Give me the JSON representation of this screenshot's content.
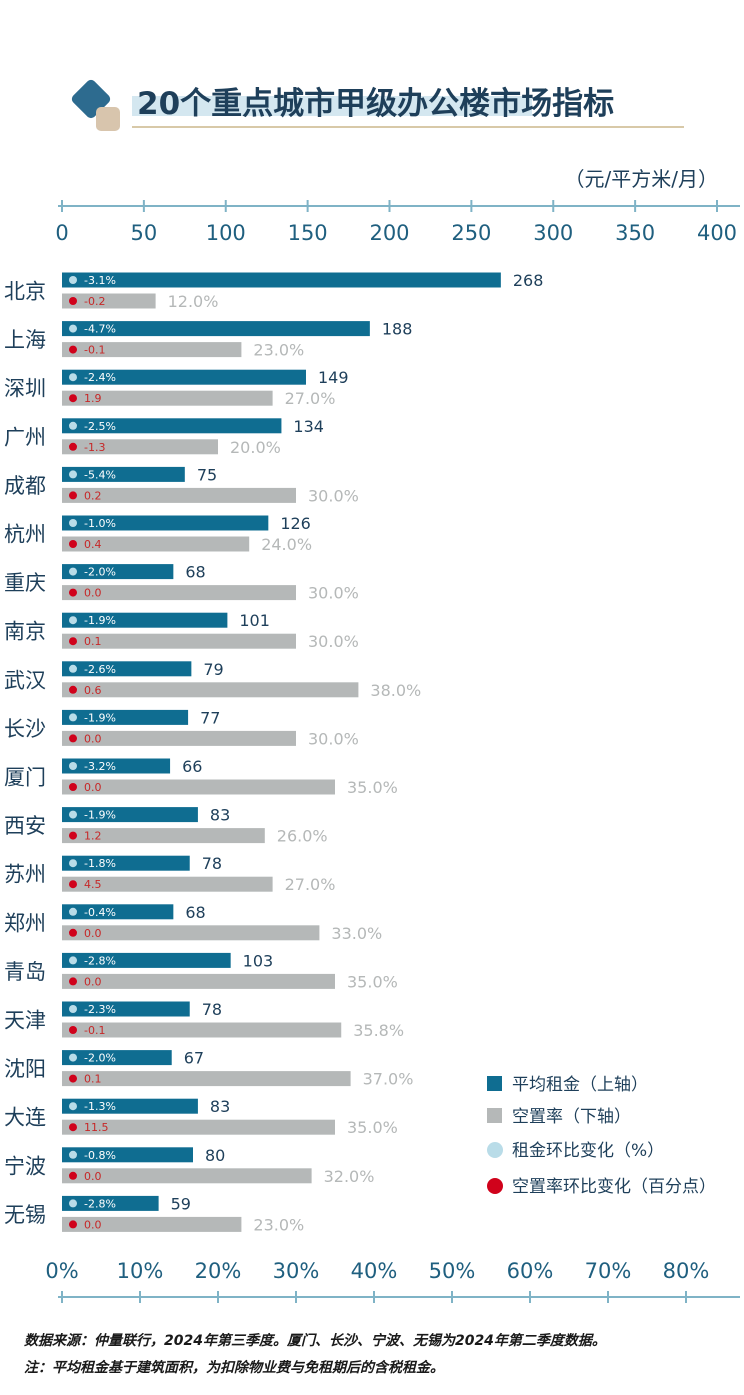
{
  "header": {
    "title": "20个重点城市甲级办公楼市场指标",
    "unit": "（元/平方米/月）"
  },
  "colors": {
    "rent_bar": "#0f6d91",
    "vacancy_bar": "#b5b8b8",
    "rent_change_dot": "#b9dce8",
    "vacancy_change_dot": "#d0021b",
    "axis": "#7fb3c6",
    "text": "#1e3f5a"
  },
  "chart_data": {
    "type": "bar",
    "orientation": "horizontal",
    "title": "20个重点城市甲级办公楼市场指标",
    "top_axis": {
      "label": "（元/平方米/月）",
      "range": [
        0,
        400
      ],
      "ticks": [
        "0",
        "50",
        "100",
        "150",
        "200",
        "250",
        "300",
        "350",
        "400"
      ]
    },
    "bottom_axis": {
      "range": [
        0,
        80
      ],
      "ticks": [
        "0%",
        "10%",
        "20%",
        "30%",
        "40%",
        "50%",
        "60%",
        "70%",
        "80%"
      ]
    },
    "categories": [
      "北京",
      "上海",
      "深圳",
      "广州",
      "成都",
      "杭州",
      "重庆",
      "南京",
      "武汉",
      "长沙",
      "厦门",
      "西安",
      "苏州",
      "郑州",
      "青岛",
      "天津",
      "沈阳",
      "大连",
      "宁波",
      "无锡"
    ],
    "series": [
      {
        "name": "平均租金（上轴）",
        "values": [
          268,
          188,
          149,
          134,
          75,
          126,
          68,
          101,
          79,
          77,
          66,
          83,
          78,
          68,
          103,
          78,
          67,
          83,
          80,
          59
        ],
        "labels": [
          "268",
          "188",
          "149",
          "134",
          "75",
          "126",
          "68",
          "101",
          "79",
          "77",
          "66",
          "83",
          "78",
          "68",
          "103",
          "78",
          "67",
          "83",
          "80",
          "59"
        ]
      },
      {
        "name": "空置率（下轴）",
        "values": [
          12.0,
          23.0,
          27.0,
          20.0,
          30.0,
          24.0,
          30.0,
          30.0,
          38.0,
          30.0,
          35.0,
          26.0,
          27.0,
          33.0,
          35.0,
          35.8,
          37.0,
          35.0,
          32.0,
          23.0
        ],
        "labels": [
          "12.0%",
          "23.0%",
          "27.0%",
          "20.0%",
          "30.0%",
          "24.0%",
          "30.0%",
          "30.0%",
          "38.0%",
          "30.0%",
          "35.0%",
          "26.0%",
          "27.0%",
          "33.0%",
          "35.0%",
          "35.8%",
          "37.0%",
          "35.0%",
          "32.0%",
          "23.0%"
        ]
      },
      {
        "name": "租金环比变化（%）",
        "labels": [
          "-3.1%",
          "-4.7%",
          "-2.4%",
          "-2.5%",
          "-5.4%",
          "-1.0%",
          "-2.0%",
          "-1.9%",
          "-2.6%",
          "-1.9%",
          "-3.2%",
          "-1.9%",
          "-1.8%",
          "-0.4%",
          "-2.8%",
          "-2.3%",
          "-2.0%",
          "-1.3%",
          "-0.8%",
          "-2.8%"
        ]
      },
      {
        "name": "空置率环比变化（百分点）",
        "labels": [
          "-0.2",
          "-0.1",
          "1.9",
          "-1.3",
          "0.2",
          "0.4",
          "0.0",
          "0.1",
          "0.6",
          "0.0",
          "0.0",
          "1.2",
          "4.5",
          "0.0",
          "0.0",
          "-0.1",
          "0.1",
          "11.5",
          "0.0",
          "0.0"
        ]
      }
    ],
    "legend": [
      "平均租金（上轴）",
      "空置率（下轴）",
      "租金环比变化（%）",
      "空置率环比变化（百分点）"
    ]
  },
  "notes": [
    "数据来源：仲量联行，2024年第三季度。厦门、长沙、宁波、无锡为2024年第二季度数据。",
    "注：平均租金基于建筑面积，为扣除物业费与免租期后的含税租金。"
  ]
}
